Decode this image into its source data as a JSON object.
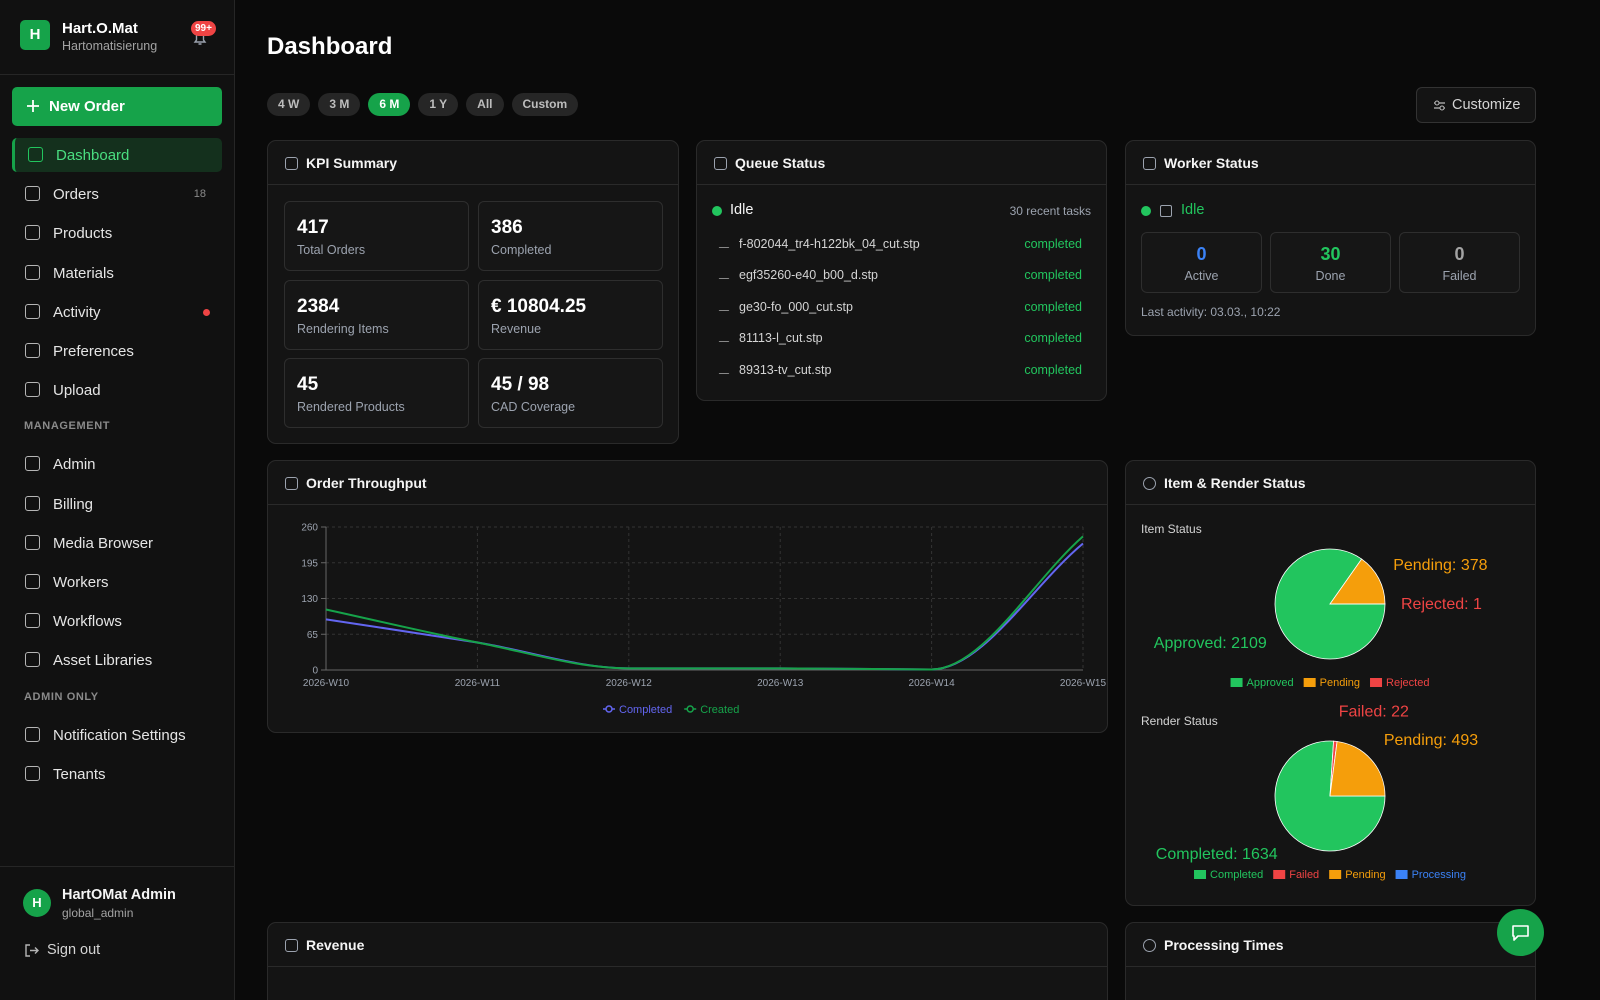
{
  "sidebar": {
    "avatar": "H",
    "brand": "Hart.O.Mat",
    "tagline": "Hartomatisierung",
    "notification_badge": "99+",
    "new_order": "New Order",
    "active": 0,
    "nav": [
      {
        "label": "Dashboard"
      },
      {
        "label": "Orders",
        "count": 18
      },
      {
        "label": "Products"
      },
      {
        "label": "Materials"
      },
      {
        "label": "Activity",
        "alert": true
      },
      {
        "label": "Preferences"
      },
      {
        "label": "Upload"
      }
    ],
    "sections": [
      {
        "title": "MANAGEMENT",
        "items": [
          {
            "label": "Admin"
          },
          {
            "label": "Billing"
          },
          {
            "label": "Media Browser"
          },
          {
            "label": "Workers"
          },
          {
            "label": "Workflows"
          },
          {
            "label": "Asset Libraries"
          }
        ]
      },
      {
        "title": "ADMIN ONLY",
        "items": [
          {
            "label": "Notification Settings"
          },
          {
            "label": "Tenants"
          }
        ]
      }
    ],
    "user": {
      "avatar": "H",
      "name": "HartOMat Admin",
      "role": "global_admin"
    },
    "sign_out": "Sign out"
  },
  "header": {
    "title": "Dashboard",
    "ranges": [
      "4 W",
      "3 M",
      "6 M",
      "1 Y",
      "All",
      "Custom"
    ],
    "active_range": 2,
    "customize": "Customize"
  },
  "kpi": {
    "title": "KPI Summary",
    "cards": [
      {
        "value": "417",
        "label": "Total Orders"
      },
      {
        "value": "386",
        "label": "Completed"
      },
      {
        "value": "2384",
        "label": "Rendering Items"
      },
      {
        "value": "€ 10804.25",
        "label": "Revenue"
      },
      {
        "value": "45",
        "label": "Rendered Products"
      },
      {
        "value": "45 / 98",
        "label": "CAD Coverage"
      }
    ]
  },
  "queue": {
    "title": "Queue Status",
    "state": "Idle",
    "recent": "30 recent tasks",
    "tasks": [
      {
        "file": "f-802044_tr4-h122bk_04_cut.stp",
        "status": "completed"
      },
      {
        "file": "egf35260-e40_b00_d.stp",
        "status": "completed"
      },
      {
        "file": "ge30-fo_000_cut.stp",
        "status": "completed"
      },
      {
        "file": "81113-l_cut.stp",
        "status": "completed"
      },
      {
        "file": "89313-tv_cut.stp",
        "status": "completed"
      }
    ]
  },
  "worker": {
    "title": "Worker Status",
    "state": "Idle",
    "stats": [
      {
        "value": "0",
        "label": "Active",
        "color": "#3b82f6"
      },
      {
        "value": "30",
        "label": "Done",
        "color": "#22c55e"
      },
      {
        "value": "0",
        "label": "Failed",
        "color": "#a3a3a3"
      }
    ],
    "last_activity": "Last activity: 03.03., 10:22"
  },
  "panels": {
    "status": "Item & Render Status",
    "revenue": "Revenue",
    "processing": "Processing Times"
  },
  "chart_data": [
    {
      "type": "line",
      "title": "Order Throughput",
      "categories": [
        "2026-W10",
        "2026-W11",
        "2026-W12",
        "2026-W13",
        "2026-W14",
        "2026-W15"
      ],
      "series": [
        {
          "name": "Completed",
          "color": "#6366f1",
          "values": [
            92,
            50,
            3,
            3,
            1,
            230
          ]
        },
        {
          "name": "Created",
          "color": "#16a34a",
          "values": [
            110,
            50,
            3,
            3,
            1,
            243
          ]
        }
      ],
      "ylim": [
        0,
        260
      ],
      "yticks": [
        0,
        65,
        130,
        195,
        260
      ],
      "grid": true
    },
    {
      "type": "pie",
      "title": "Item Status",
      "categories": [
        "Approved",
        "Pending",
        "Rejected"
      ],
      "values": [
        2109,
        378,
        1
      ],
      "value_labels": [
        "Approved: 2109",
        "Pending: 378",
        "Rejected: 1"
      ],
      "colors": [
        "#22c55e",
        "#f59e0b",
        "#ef4444"
      ]
    },
    {
      "type": "pie",
      "title": "Render Status",
      "categories": [
        "Completed",
        "Failed",
        "Pending",
        "Processing"
      ],
      "values": [
        1634,
        22,
        493,
        0
      ],
      "value_labels": [
        "Completed: 1634",
        "Failed: 22",
        "Pending: 493",
        null
      ],
      "colors": [
        "#22c55e",
        "#ef4444",
        "#f59e0b",
        "#3b82f6"
      ]
    }
  ]
}
